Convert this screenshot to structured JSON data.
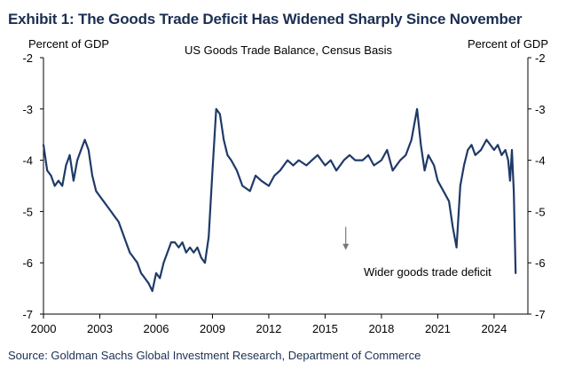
{
  "exhibit_title": "Exhibit 1: The Goods Trade Deficit Has Widened Sharply Since November",
  "source": "Source: Goldman Sachs Global Investment Research, Department of Commerce",
  "chart_data": {
    "type": "line",
    "title": "US Goods Trade  Balance, Census Basis",
    "ylabel_left": "Percent of GDP",
    "ylabel_right": "Percent of GDP",
    "xlabel": "",
    "xlim": [
      2000,
      2025.8
    ],
    "ylim": [
      -7,
      -2
    ],
    "x_ticks": [
      2000,
      2003,
      2006,
      2009,
      2012,
      2015,
      2018,
      2021,
      2024
    ],
    "y_ticks": [
      -2,
      -3,
      -4,
      -5,
      -6,
      -7
    ],
    "grid": false,
    "annotation": {
      "text": "Wider goods trade deficit",
      "x": 2016.1,
      "y": -5.3,
      "arrow_to_y": -5.75
    },
    "series": [
      {
        "name": "",
        "color": "#1f3a68",
        "x": [
          2000.0,
          2000.2,
          2000.4,
          2000.6,
          2000.8,
          2001.0,
          2001.2,
          2001.4,
          2001.6,
          2001.8,
          2002.0,
          2002.2,
          2002.4,
          2002.6,
          2002.8,
          2003.0,
          2003.2,
          2003.4,
          2003.6,
          2003.8,
          2004.0,
          2004.2,
          2004.4,
          2004.6,
          2004.8,
          2005.0,
          2005.2,
          2005.4,
          2005.6,
          2005.8,
          2006.0,
          2006.2,
          2006.4,
          2006.6,
          2006.8,
          2007.0,
          2007.2,
          2007.4,
          2007.6,
          2007.8,
          2008.0,
          2008.2,
          2008.4,
          2008.6,
          2008.8,
          2009.0,
          2009.2,
          2009.4,
          2009.6,
          2009.8,
          2010.0,
          2010.3,
          2010.6,
          2011.0,
          2011.3,
          2011.6,
          2012.0,
          2012.3,
          2012.6,
          2013.0,
          2013.3,
          2013.6,
          2014.0,
          2014.3,
          2014.6,
          2015.0,
          2015.3,
          2015.6,
          2016.0,
          2016.3,
          2016.6,
          2017.0,
          2017.3,
          2017.6,
          2018.0,
          2018.3,
          2018.6,
          2019.0,
          2019.3,
          2019.6,
          2019.9,
          2020.1,
          2020.3,
          2020.5,
          2020.8,
          2021.0,
          2021.3,
          2021.6,
          2021.8,
          2022.0,
          2022.2,
          2022.4,
          2022.6,
          2022.8,
          2023.0,
          2023.3,
          2023.6,
          2024.0,
          2024.2,
          2024.4,
          2024.6,
          2024.75,
          2024.85,
          2024.95,
          2025.05,
          2025.15
        ],
        "y": [
          -3.7,
          -4.2,
          -4.3,
          -4.5,
          -4.4,
          -4.5,
          -4.1,
          -3.9,
          -4.4,
          -4.0,
          -3.8,
          -3.6,
          -3.8,
          -4.3,
          -4.6,
          -4.7,
          -4.8,
          -4.9,
          -5.0,
          -5.1,
          -5.2,
          -5.4,
          -5.6,
          -5.8,
          -5.9,
          -6.0,
          -6.2,
          -6.3,
          -6.4,
          -6.55,
          -6.2,
          -6.3,
          -6.0,
          -5.8,
          -5.6,
          -5.6,
          -5.7,
          -5.6,
          -5.8,
          -5.7,
          -5.8,
          -5.7,
          -5.9,
          -6.0,
          -5.5,
          -4.2,
          -3.0,
          -3.1,
          -3.6,
          -3.9,
          -4.0,
          -4.2,
          -4.5,
          -4.6,
          -4.3,
          -4.4,
          -4.5,
          -4.3,
          -4.2,
          -4.0,
          -4.1,
          -4.0,
          -4.1,
          -4.0,
          -3.9,
          -4.1,
          -4.0,
          -4.2,
          -4.0,
          -3.9,
          -4.0,
          -4.0,
          -3.9,
          -4.1,
          -4.0,
          -3.8,
          -4.2,
          -4.0,
          -3.9,
          -3.6,
          -3.0,
          -3.7,
          -4.2,
          -3.9,
          -4.1,
          -4.4,
          -4.6,
          -4.8,
          -5.3,
          -5.7,
          -4.5,
          -4.1,
          -3.8,
          -3.7,
          -3.9,
          -3.8,
          -3.6,
          -3.8,
          -3.7,
          -3.9,
          -3.8,
          -4.0,
          -4.4,
          -3.8,
          -4.6,
          -6.2
        ]
      }
    ]
  }
}
